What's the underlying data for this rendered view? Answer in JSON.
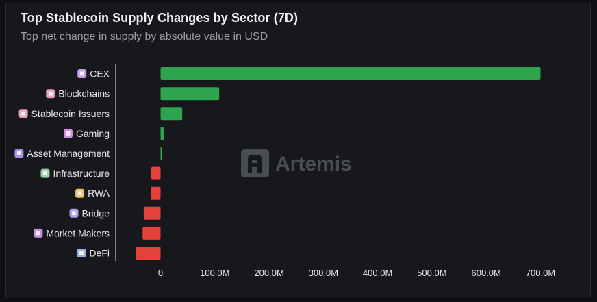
{
  "header": {
    "title": "Top Stablecoin Supply Changes by Sector (7D)",
    "subtitle": "Top net change in supply by absolute value in USD"
  },
  "watermark": {
    "text": "Artemis"
  },
  "colors": {
    "positive": "#2ea44f",
    "negative": "#e5413b",
    "axis": "#e6e7ea"
  },
  "chart_data": {
    "type": "bar",
    "orientation": "horizontal",
    "categories": [
      "CEX",
      "Blockchains",
      "Stablecoin Issuers",
      "Gaming",
      "Asset Management",
      "Infrastructure",
      "RWA",
      "Bridge",
      "Market Makers",
      "DeFi"
    ],
    "values": [
      700000000,
      108000000,
      40000000,
      6000000,
      3000000,
      -17000000,
      -18000000,
      -31000000,
      -33000000,
      -46000000
    ],
    "category_icons": [
      "bank-icon",
      "cube-icon",
      "coin-icon",
      "gamepad-icon",
      "briefcase-icon",
      "server-icon",
      "building-icon",
      "bridge-icon",
      "shop-icon",
      "layers-icon"
    ],
    "x_ticks": [
      0,
      100000000,
      200000000,
      300000000,
      400000000,
      500000000,
      600000000,
      700000000
    ],
    "x_tick_labels": [
      "0",
      "100.0M",
      "200.0M",
      "300.0M",
      "400.0M",
      "500.0M",
      "600.0M",
      "700.0M"
    ],
    "xlim": [
      -85000000,
      735000000
    ],
    "title": "Top Stablecoin Supply Changes by Sector (7D)",
    "subtitle": "Top net change in supply by absolute value in USD",
    "xlabel": "",
    "ylabel": ""
  }
}
